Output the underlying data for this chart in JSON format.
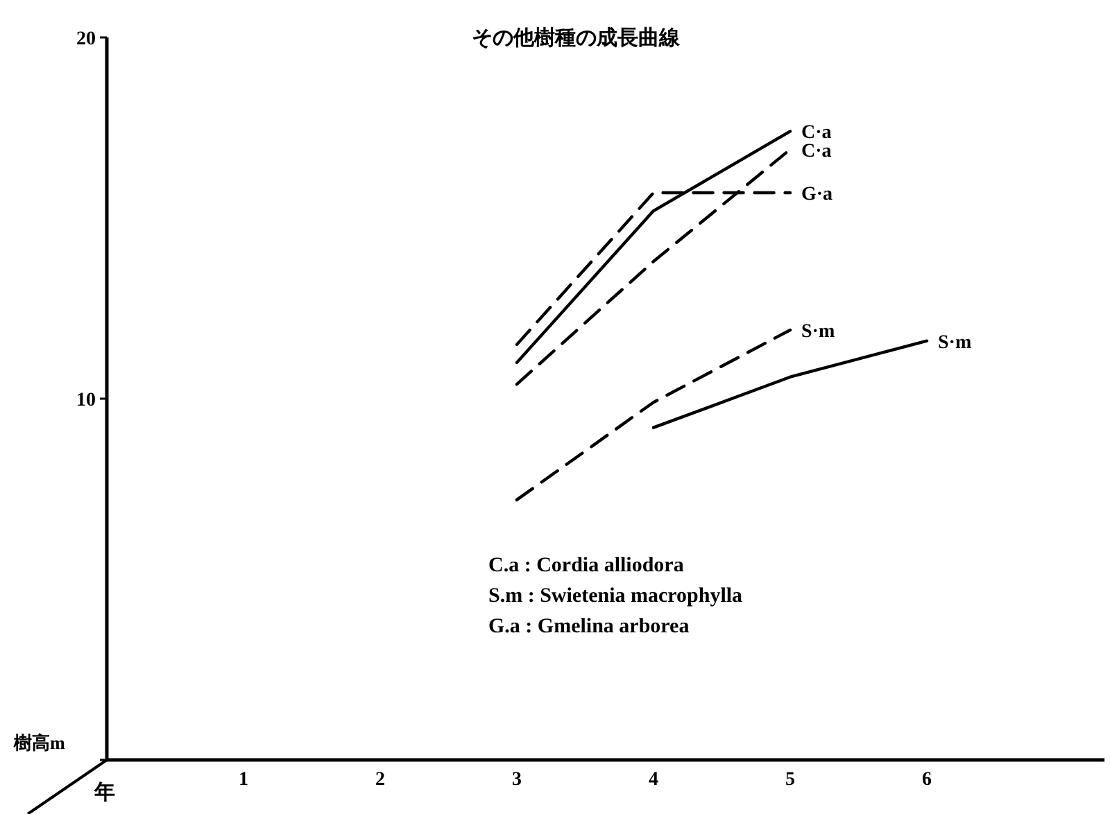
{
  "chart_data": {
    "type": "line",
    "title": "その他樹種の成長曲線",
    "xlabel": "年",
    "ylabel": "樹高m",
    "xlim": [
      0,
      7.3
    ],
    "xticks": [
      1,
      2,
      3,
      4,
      5,
      6
    ],
    "ylim": [
      0,
      20
    ],
    "yticks": [
      {
        "value": 0,
        "label": null
      },
      10,
      20
    ],
    "grid": false,
    "marker": "none",
    "series": [
      {
        "name": "C·a",
        "color": "#000000",
        "line_style": "solid",
        "x": [
          3,
          4,
          5
        ],
        "values": [
          11.0,
          15.2,
          17.4
        ]
      },
      {
        "name": "C·a",
        "color": "#000000",
        "line_style": "dashed",
        "x": [
          3,
          4,
          5
        ],
        "values": [
          10.4,
          13.8,
          16.9
        ]
      },
      {
        "name": "G·a",
        "color": "#000000",
        "line_style": "dashed",
        "x": [
          3,
          4,
          5
        ],
        "values": [
          11.5,
          15.7,
          15.7
        ]
      },
      {
        "name": "S·m",
        "color": "#000000",
        "line_style": "dashed",
        "x": [
          3,
          4,
          5
        ],
        "values": [
          7.2,
          9.9,
          11.9
        ]
      },
      {
        "name": "S·m",
        "color": "#000000",
        "line_style": "solid",
        "x": [
          4,
          5,
          6
        ],
        "values": [
          9.2,
          10.6,
          11.6
        ]
      }
    ],
    "annotations": [
      "C.a : Cordia alliodora",
      "S.m : Swietenia macrophylla",
      "G.a : Gmelina arborea"
    ]
  }
}
